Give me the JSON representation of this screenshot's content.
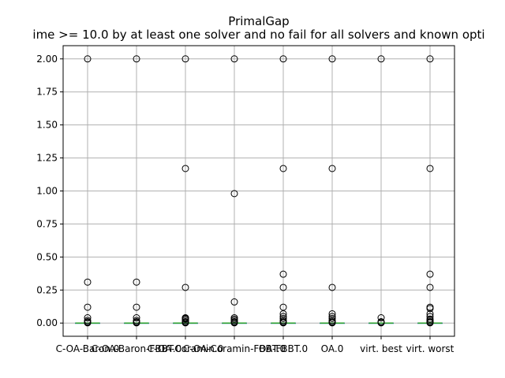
{
  "chart_data": {
    "type": "box",
    "title": "PrimalGap",
    "subtitle": "ime >= 10.0 by at least one solver and no fail for all solvers and known opti",
    "xlabel": "",
    "ylabel": "",
    "ylim": [
      -0.1,
      2.1
    ],
    "grid": true,
    "y_ticks": [
      "0.00",
      "0.25",
      "0.50",
      "0.75",
      "1.00",
      "1.25",
      "1.50",
      "1.75",
      "2.00"
    ],
    "categories": [
      "C-OA-Baron.0",
      "C-OA-Baron-FBBT.0",
      "C-OA-Coramin.0",
      "C-OA-Coramin-FBBT.0",
      "OA-FBBT.0",
      "OA.0",
      "virt. best",
      "virt. worst"
    ],
    "series": [
      {
        "box": {
          "whislo": 0,
          "q1": 0,
          "med": 0,
          "q3": 0,
          "whishi": 0
        },
        "fliers": [
          2.0,
          0.31,
          0.12,
          0.04,
          0.02,
          0.01,
          0.005,
          0.002
        ]
      },
      {
        "box": {
          "whislo": 0,
          "q1": 0,
          "med": 0,
          "q3": 0,
          "whishi": 0
        },
        "fliers": [
          2.0,
          0.31,
          0.12,
          0.04,
          0.02,
          0.01,
          0.005,
          0.002
        ]
      },
      {
        "box": {
          "whislo": 0,
          "q1": 0,
          "med": 0,
          "q3": 0,
          "whishi": 0
        },
        "fliers": [
          2.0,
          1.17,
          0.27,
          0.04,
          0.035,
          0.03,
          0.02,
          0.01,
          0.005,
          0.002
        ]
      },
      {
        "box": {
          "whislo": 0,
          "q1": 0,
          "med": 0,
          "q3": 0,
          "whishi": 0
        },
        "fliers": [
          2.0,
          0.98,
          0.16,
          0.04,
          0.03,
          0.02,
          0.01,
          0.005,
          0.002
        ]
      },
      {
        "box": {
          "whislo": 0,
          "q1": 0,
          "med": 0,
          "q3": 0,
          "whishi": 0
        },
        "fliers": [
          2.0,
          1.17,
          0.37,
          0.27,
          0.12,
          0.07,
          0.05,
          0.035,
          0.02,
          0.01,
          0.005,
          0.002
        ]
      },
      {
        "box": {
          "whislo": 0,
          "q1": 0,
          "med": 0,
          "q3": 0,
          "whishi": 0
        },
        "fliers": [
          2.0,
          1.17,
          0.27,
          0.07,
          0.05,
          0.035,
          0.02,
          0.01,
          0.005,
          0.002
        ]
      },
      {
        "box": {
          "whislo": 0,
          "q1": 0,
          "med": 0,
          "q3": 0,
          "whishi": 0
        },
        "fliers": [
          2.0,
          0.04,
          0.01,
          0.005,
          0.002
        ]
      },
      {
        "box": {
          "whislo": 0,
          "q1": 0,
          "med": 0,
          "q3": 0,
          "whishi": 0
        },
        "fliers": [
          2.0,
          1.17,
          0.37,
          0.27,
          0.12,
          0.11,
          0.07,
          0.05,
          0.03,
          0.02,
          0.01,
          0.005,
          0.002
        ]
      }
    ],
    "colors": {
      "median": "#2ca02c",
      "box": "#1f77b4",
      "flier": "#000000",
      "grid": "#b0b0b0"
    }
  }
}
